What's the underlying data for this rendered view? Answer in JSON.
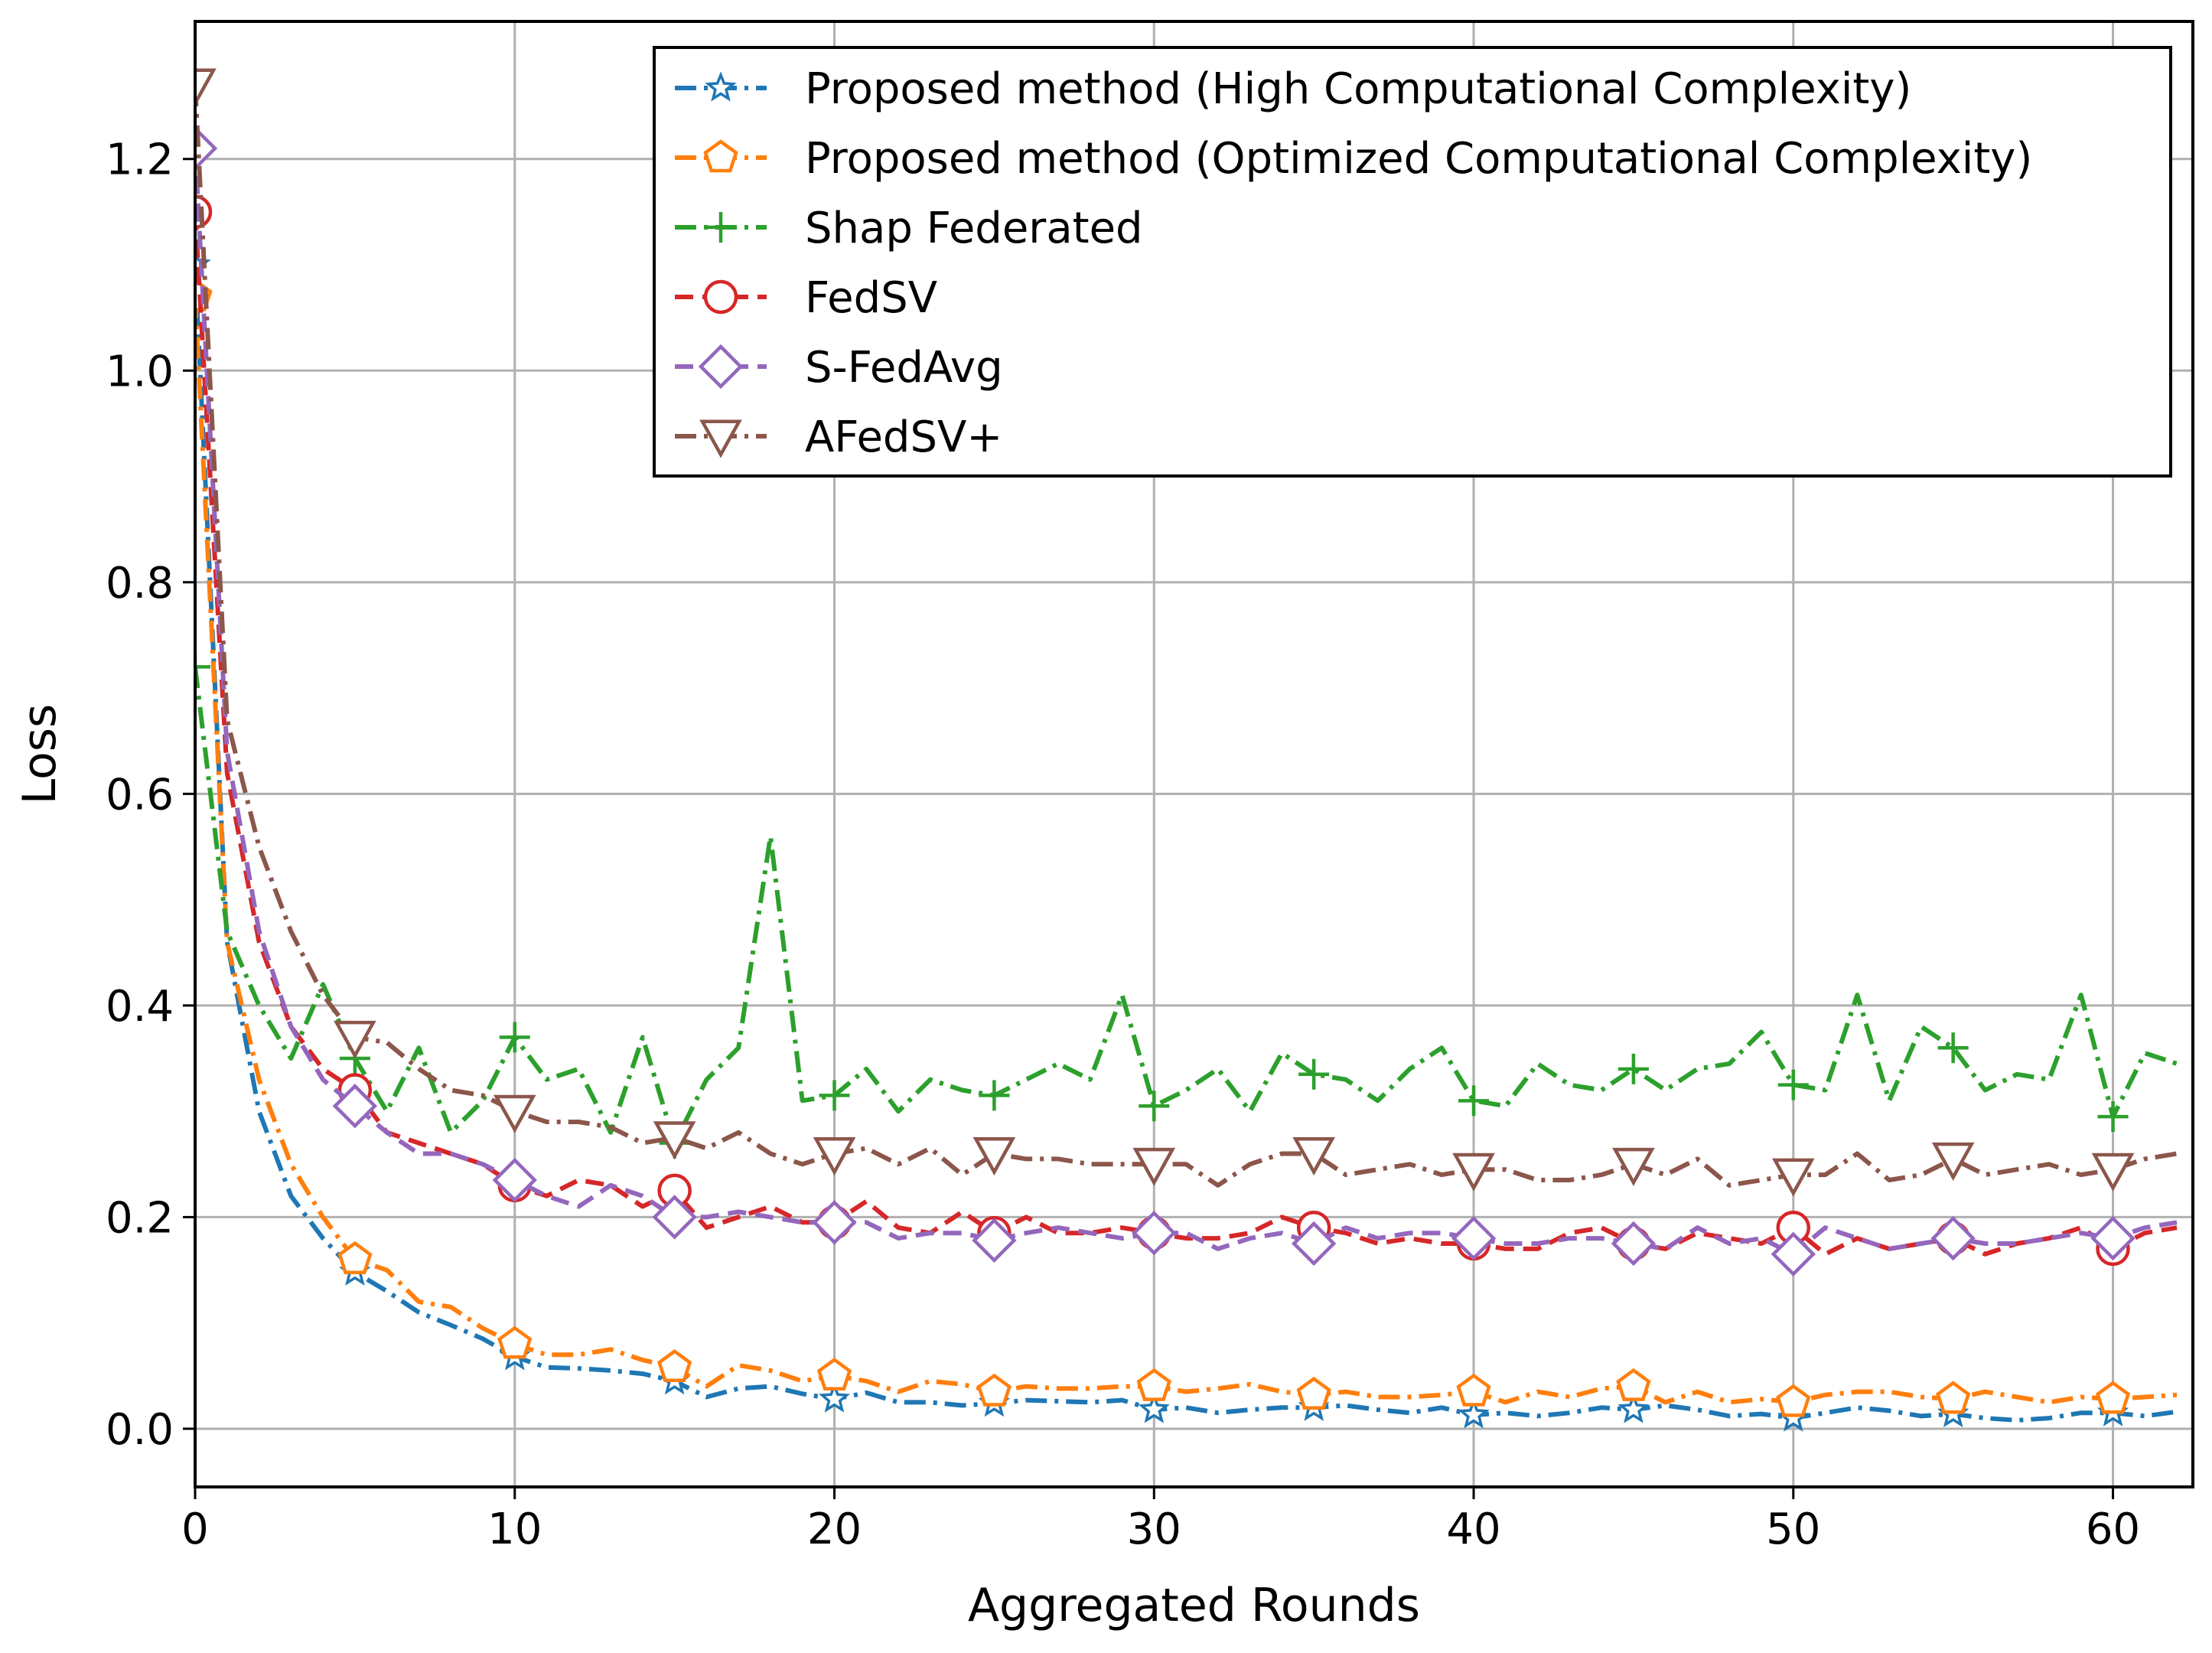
{
  "chart_data": {
    "type": "line",
    "title": "",
    "xlabel": "Aggregated Rounds",
    "ylabel": "Loss",
    "xlim": [
      0,
      62.5
    ],
    "ylim": [
      -0.055,
      1.33
    ],
    "xticks": [
      0,
      10,
      20,
      30,
      40,
      50,
      60
    ],
    "yticks": [
      0.0,
      0.2,
      0.4,
      0.6,
      0.8,
      1.0,
      1.2
    ],
    "xtick_labels": [
      "0",
      "10",
      "20",
      "30",
      "40",
      "50",
      "60"
    ],
    "ytick_labels": [
      "0.0",
      "0.2",
      "0.4",
      "0.6",
      "0.8",
      "1.0",
      "1.2"
    ],
    "grid": true,
    "legend_position": "top-right",
    "series": [
      {
        "name": "Proposed method (High Computational Complexity)",
        "color": "#1f77b4",
        "marker": "star",
        "markevery": 5,
        "dash": "dashdot",
        "values": [
          1.1,
          0.46,
          0.3,
          0.22,
          0.18,
          0.148,
          0.13,
          0.11,
          0.098,
          0.085,
          0.068,
          0.058,
          0.057,
          0.055,
          0.052,
          0.045,
          0.03,
          0.038,
          0.04,
          0.033,
          0.028,
          0.034,
          0.025,
          0.025,
          0.022,
          0.024,
          0.027,
          0.026,
          0.025,
          0.027,
          0.018,
          0.02,
          0.015,
          0.018,
          0.02,
          0.02,
          0.022,
          0.018,
          0.015,
          0.02,
          0.013,
          0.015,
          0.012,
          0.015,
          0.02,
          0.018,
          0.022,
          0.018,
          0.012,
          0.014,
          0.01,
          0.015,
          0.02,
          0.017,
          0.012,
          0.014,
          0.01,
          0.008,
          0.01,
          0.015,
          0.015,
          0.012,
          0.016
        ]
      },
      {
        "name": "Proposed method (Optimized Computational Complexity)",
        "color": "#ff7f0e",
        "marker": "pentagon",
        "markevery": 5,
        "dash": "dashdot",
        "values": [
          1.07,
          0.46,
          0.33,
          0.25,
          0.2,
          0.16,
          0.15,
          0.12,
          0.115,
          0.095,
          0.08,
          0.07,
          0.07,
          0.075,
          0.065,
          0.058,
          0.04,
          0.06,
          0.055,
          0.045,
          0.05,
          0.045,
          0.035,
          0.045,
          0.042,
          0.035,
          0.04,
          0.038,
          0.038,
          0.04,
          0.04,
          0.035,
          0.038,
          0.042,
          0.035,
          0.032,
          0.035,
          0.03,
          0.03,
          0.032,
          0.035,
          0.025,
          0.035,
          0.03,
          0.038,
          0.04,
          0.025,
          0.035,
          0.025,
          0.028,
          0.025,
          0.032,
          0.035,
          0.035,
          0.03,
          0.028,
          0.035,
          0.03,
          0.025,
          0.03,
          0.028,
          0.03,
          0.032
        ]
      },
      {
        "name": "Shap Federated",
        "color": "#2ca02c",
        "marker": "plus",
        "markevery": 5,
        "dash": "dashdot",
        "values": [
          0.72,
          0.47,
          0.4,
          0.35,
          0.42,
          0.35,
          0.3,
          0.36,
          0.28,
          0.31,
          0.37,
          0.33,
          0.34,
          0.28,
          0.37,
          0.27,
          0.33,
          0.36,
          0.56,
          0.31,
          0.315,
          0.34,
          0.3,
          0.33,
          0.32,
          0.315,
          0.33,
          0.345,
          0.33,
          0.41,
          0.305,
          0.32,
          0.34,
          0.3,
          0.355,
          0.335,
          0.33,
          0.31,
          0.34,
          0.36,
          0.31,
          0.305,
          0.345,
          0.325,
          0.32,
          0.34,
          0.32,
          0.34,
          0.345,
          0.375,
          0.325,
          0.32,
          0.41,
          0.31,
          0.38,
          0.36,
          0.32,
          0.335,
          0.33,
          0.41,
          0.295,
          0.355,
          0.345
        ]
      },
      {
        "name": "FedSV",
        "color": "#d62728",
        "marker": "circle",
        "markevery": 5,
        "dash": "dashed",
        "values": [
          1.15,
          0.62,
          0.46,
          0.38,
          0.34,
          0.32,
          0.28,
          0.27,
          0.26,
          0.25,
          0.23,
          0.22,
          0.235,
          0.23,
          0.21,
          0.225,
          0.19,
          0.2,
          0.21,
          0.195,
          0.195,
          0.215,
          0.19,
          0.185,
          0.205,
          0.185,
          0.2,
          0.185,
          0.185,
          0.19,
          0.185,
          0.18,
          0.18,
          0.185,
          0.2,
          0.19,
          0.185,
          0.175,
          0.18,
          0.175,
          0.175,
          0.17,
          0.17,
          0.185,
          0.19,
          0.175,
          0.17,
          0.185,
          0.18,
          0.175,
          0.19,
          0.165,
          0.18,
          0.17,
          0.175,
          0.18,
          0.165,
          0.175,
          0.18,
          0.19,
          0.17,
          0.185,
          0.19
        ]
      },
      {
        "name": "S-FedAvg",
        "color": "#9467bd",
        "marker": "diamond",
        "markevery": 5,
        "dash": "dashed",
        "values": [
          1.21,
          0.64,
          0.47,
          0.38,
          0.33,
          0.305,
          0.28,
          0.26,
          0.26,
          0.25,
          0.235,
          0.22,
          0.21,
          0.23,
          0.22,
          0.2,
          0.2,
          0.205,
          0.2,
          0.195,
          0.195,
          0.195,
          0.18,
          0.185,
          0.185,
          0.178,
          0.185,
          0.19,
          0.185,
          0.18,
          0.185,
          0.185,
          0.17,
          0.18,
          0.185,
          0.175,
          0.19,
          0.18,
          0.185,
          0.185,
          0.18,
          0.175,
          0.175,
          0.18,
          0.18,
          0.175,
          0.17,
          0.19,
          0.175,
          0.18,
          0.165,
          0.19,
          0.18,
          0.17,
          0.175,
          0.18,
          0.175,
          0.175,
          0.18,
          0.185,
          0.18,
          0.19,
          0.195
        ]
      },
      {
        "name": "AFedSV+",
        "color": "#8c564b",
        "marker": "triangle-down",
        "markevery": 5,
        "dash": "dashdot",
        "values": [
          1.27,
          0.67,
          0.55,
          0.47,
          0.41,
          0.37,
          0.365,
          0.34,
          0.32,
          0.315,
          0.3,
          0.29,
          0.29,
          0.285,
          0.27,
          0.275,
          0.265,
          0.28,
          0.26,
          0.25,
          0.26,
          0.265,
          0.25,
          0.265,
          0.24,
          0.26,
          0.255,
          0.255,
          0.25,
          0.25,
          0.25,
          0.25,
          0.23,
          0.25,
          0.26,
          0.26,
          0.24,
          0.245,
          0.25,
          0.24,
          0.245,
          0.245,
          0.235,
          0.235,
          0.24,
          0.25,
          0.24,
          0.255,
          0.23,
          0.235,
          0.24,
          0.24,
          0.26,
          0.235,
          0.24,
          0.255,
          0.24,
          0.245,
          0.25,
          0.24,
          0.245,
          0.255,
          0.26
        ]
      }
    ]
  }
}
